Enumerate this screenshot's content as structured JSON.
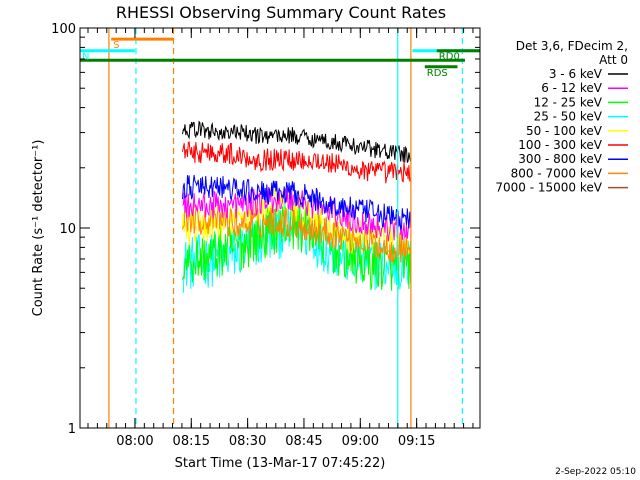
{
  "chart_data": {
    "type": "line",
    "title": "RHESSI Observing Summary Count Rates",
    "xlabel": "Start Time (13-Mar-17 07:45:22)",
    "ylabel": "Count Rate (s⁻¹ detector⁻¹)",
    "x_unit": "minutes after 07:45:22",
    "xlim": [
      0,
      106.5
    ],
    "ylim": [
      1,
      100
    ],
    "y_scale": "log",
    "grid": false,
    "legend_position": "right",
    "x_ticks": [
      {
        "value": 14.63,
        "label": "08:00"
      },
      {
        "value": 29.63,
        "label": "08:15"
      },
      {
        "value": 44.63,
        "label": "08:30"
      },
      {
        "value": 59.63,
        "label": "08:45"
      },
      {
        "value": 74.63,
        "label": "09:00"
      },
      {
        "value": 89.63,
        "label": "09:15"
      }
    ],
    "y_ticks": [
      {
        "value": 1,
        "label": "1"
      },
      {
        "value": 10,
        "label": "10"
      },
      {
        "value": 100,
        "label": "100"
      }
    ],
    "legend_header": [
      "Det 3,6, FDecim 2,",
      "Att 0"
    ],
    "data_window": [
      27.3,
      88.1
    ],
    "series": [
      {
        "name": "3 - 6 keV",
        "color": "#000000",
        "x": [
          27.3,
          32,
          37,
          42,
          47,
          52,
          57,
          62,
          67,
          72,
          77,
          82,
          88.1
        ],
        "y": [
          31,
          31,
          30,
          30,
          29,
          29,
          29,
          28,
          27,
          26,
          25,
          24,
          23
        ]
      },
      {
        "name": "6 - 12 keV",
        "color": "#ff00ff",
        "x": [
          27.3,
          32,
          37,
          42,
          47,
          52,
          57,
          62,
          67,
          72,
          77,
          82,
          88.1
        ],
        "y": [
          13,
          13,
          13,
          13,
          13.5,
          14,
          14,
          13,
          12,
          11,
          10.5,
          10,
          10
        ]
      },
      {
        "name": "12 - 25 keV",
        "color": "#00ff00",
        "x": [
          27.3,
          32,
          37,
          42,
          47,
          52,
          57,
          62,
          67,
          72,
          77,
          82,
          88.1
        ],
        "y": [
          7,
          7,
          7.5,
          8,
          9,
          10,
          10.5,
          9.5,
          8,
          7,
          6.5,
          6.5,
          6.5
        ]
      },
      {
        "name": "25 - 50 keV",
        "color": "#00ffff",
        "x": [
          27.3,
          32,
          37,
          42,
          47,
          52,
          57,
          62,
          67,
          72,
          77,
          82,
          88.1
        ],
        "y": [
          6.5,
          6.8,
          7,
          7.5,
          8.5,
          9.5,
          10,
          9,
          7.8,
          7,
          6.8,
          6.5,
          6.5
        ]
      },
      {
        "name": "50 - 100 keV",
        "color": "#ffff00",
        "x": [
          27.3,
          32,
          37,
          42,
          47,
          52,
          57,
          62,
          67,
          72,
          77,
          82,
          88.1
        ],
        "y": [
          10,
          10,
          10.5,
          11,
          12,
          13,
          12.5,
          11.5,
          10,
          9,
          9,
          9,
          8.5
        ]
      },
      {
        "name": "100 - 300 keV",
        "color": "#ff0000",
        "x": [
          27.3,
          32,
          37,
          42,
          47,
          52,
          57,
          62,
          67,
          72,
          77,
          82,
          88.1
        ],
        "y": [
          24,
          24,
          24,
          23,
          22,
          22,
          22,
          22,
          21,
          20,
          19,
          19,
          19
        ]
      },
      {
        "name": "300 - 800 keV",
        "color": "#0000ff",
        "x": [
          27.3,
          32,
          37,
          42,
          47,
          52,
          57,
          62,
          67,
          72,
          77,
          82,
          88.1
        ],
        "y": [
          16,
          16,
          16,
          15.5,
          15,
          15,
          15,
          14,
          13,
          12.5,
          12,
          11.5,
          11
        ]
      },
      {
        "name": "800 - 7000 keV",
        "color": "#ff8800",
        "x": [
          27.3,
          32,
          37,
          42,
          47,
          52,
          57,
          62,
          67,
          72,
          77,
          82,
          88.1
        ],
        "y": [
          11.5,
          11,
          11,
          10.5,
          10.5,
          11,
          10.5,
          10,
          9.5,
          9,
          8.5,
          8,
          8
        ]
      },
      {
        "name": "7000 - 15000 keV",
        "color": "#a0522d",
        "x": [],
        "y": []
      }
    ],
    "flag_bars": [
      {
        "label": "S",
        "color": "#ff8000",
        "x": [
          8.3,
          24.9
        ],
        "y": 88
      },
      {
        "label": "N",
        "color": "#00ffff",
        "x": [
          0,
          14.6
        ],
        "y": 77
      },
      {
        "label": "RD0",
        "color": "#008000",
        "x": [
          95,
          106.5
        ],
        "y": 77
      },
      {
        "label": "RDS",
        "color": "#008000",
        "x": [
          91.8,
          100.5
        ],
        "y": 64
      }
    ],
    "flag_lines": [
      {
        "color": "#008000",
        "x": [
          0,
          102.5
        ],
        "y": 69,
        "style": "solid"
      },
      {
        "color": "#00ffff",
        "x": [
          88.5,
          106.5
        ],
        "y": 77,
        "style": "solid"
      }
    ],
    "vertical_markers": [
      {
        "x": 7.7,
        "color": "#ff8000",
        "style": "solid"
      },
      {
        "x": 14.9,
        "color": "#00ffff",
        "style": "dashed"
      },
      {
        "x": 24.9,
        "color": "#ff8000",
        "style": "dashed"
      },
      {
        "x": 84.6,
        "color": "#00ffff",
        "style": "solid"
      },
      {
        "x": 88.1,
        "color": "#ff8000",
        "style": "solid"
      },
      {
        "x": 101.8,
        "color": "#00ffff",
        "style": "dashed"
      }
    ]
  },
  "footer": {
    "date": "2-Sep-2022 05:10"
  }
}
